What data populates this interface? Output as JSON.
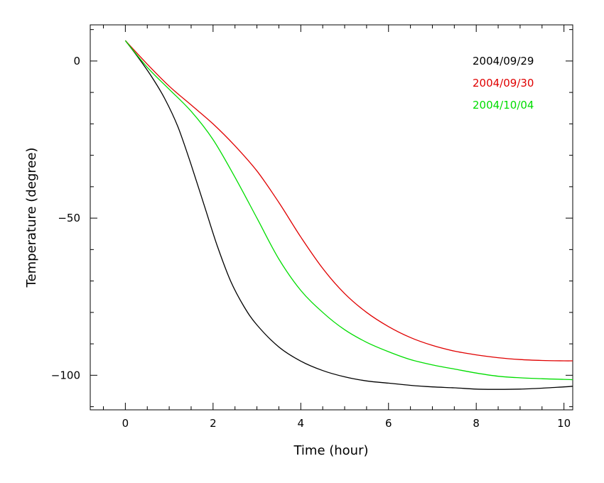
{
  "chart_data": {
    "type": "line",
    "xlabel": "Time (hour)",
    "ylabel": "Temperature (degree)",
    "xlim": [
      -0.8,
      10.2
    ],
    "ylim": [
      -111,
      11.5
    ],
    "xticks": [
      0,
      2,
      4,
      6,
      8,
      10
    ],
    "yticks": [
      0,
      -50,
      -100
    ],
    "xtick_labels": [
      "0",
      "2",
      "4",
      "6",
      "8",
      "10"
    ],
    "ytick_labels": [
      "0",
      "−50",
      "−100"
    ],
    "grid": false,
    "legend_position": "top-right",
    "series": [
      {
        "name": "2004/09/29",
        "color": "#000000",
        "x": [
          0,
          0.3,
          0.6,
          0.9,
          1.2,
          1.5,
          1.8,
          2.1,
          2.4,
          2.7,
          3.0,
          3.5,
          4.0,
          4.5,
          5.0,
          5.5,
          6.0,
          6.5,
          7.0,
          7.5,
          8.0,
          8.5,
          9.0,
          9.5,
          10.0,
          10.2
        ],
        "y": [
          6.5,
          1,
          -5,
          -12,
          -21,
          -33,
          -46,
          -59,
          -70,
          -78,
          -84,
          -91,
          -95.5,
          -98.5,
          -100.5,
          -101.8,
          -102.5,
          -103.2,
          -103.7,
          -104,
          -104.4,
          -104.5,
          -104.4,
          -104.1,
          -103.7,
          -103.5
        ]
      },
      {
        "name": "2004/09/30",
        "color": "#e00000",
        "x": [
          0,
          0.5,
          1.0,
          1.5,
          2.0,
          2.5,
          3.0,
          3.5,
          4.0,
          4.5,
          5.0,
          5.5,
          6.0,
          6.5,
          7.0,
          7.5,
          8.0,
          8.5,
          9.0,
          9.5,
          10.0,
          10.2
        ],
        "y": [
          6.5,
          -1,
          -8,
          -14,
          -20,
          -27,
          -35,
          -45,
          -56,
          -66,
          -74,
          -80,
          -84.5,
          -88,
          -90.5,
          -92.3,
          -93.5,
          -94.4,
          -95,
          -95.3,
          -95.4,
          -95.4
        ]
      },
      {
        "name": "2004/10/04",
        "color": "#00dd00",
        "x": [
          0,
          0.5,
          1.0,
          1.5,
          2.0,
          2.5,
          3.0,
          3.5,
          4.0,
          4.5,
          5.0,
          5.5,
          6.0,
          6.5,
          7.0,
          7.5,
          8.0,
          8.5,
          9.0,
          9.5,
          10.0,
          10.2
        ],
        "y": [
          6.5,
          -2,
          -9,
          -16,
          -25,
          -37,
          -50,
          -63,
          -73,
          -80,
          -85.5,
          -89.5,
          -92.5,
          -95,
          -96.7,
          -98,
          -99.3,
          -100.3,
          -100.8,
          -101.1,
          -101.3,
          -101.4
        ]
      }
    ]
  }
}
